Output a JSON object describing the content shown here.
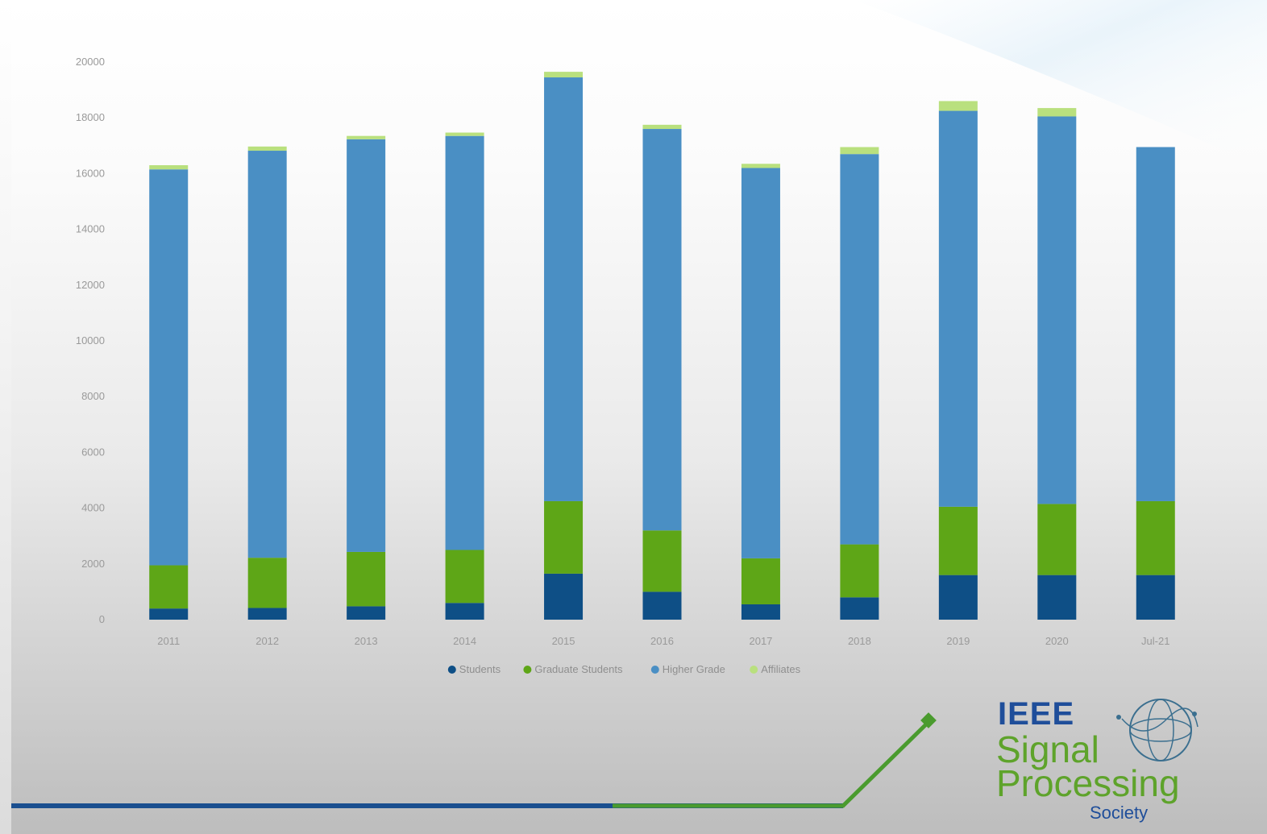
{
  "chart_data": {
    "type": "bar",
    "stacked": true,
    "categories": [
      "2011",
      "2012",
      "2013",
      "2014",
      "2015",
      "2016",
      "2017",
      "2018",
      "2019",
      "2020",
      "Jul-21"
    ],
    "series": [
      {
        "name": "Students",
        "color": "#0e4f86",
        "values": [
          400,
          420,
          480,
          600,
          1650,
          1000,
          550,
          800,
          1600,
          1600,
          1600
        ]
      },
      {
        "name": "Graduate Students",
        "color": "#5ea617",
        "values": [
          1550,
          1800,
          1950,
          1900,
          2600,
          2200,
          1650,
          1900,
          2450,
          2550,
          2650
        ]
      },
      {
        "name": "Higher Grade",
        "color": "#4a8fc4",
        "values": [
          14200,
          14600,
          14800,
          14850,
          15200,
          14400,
          14000,
          14000,
          14200,
          13900,
          12700
        ]
      },
      {
        "name": "Affiliates",
        "color": "#b9e07e",
        "values": [
          150,
          150,
          120,
          120,
          200,
          150,
          150,
          250,
          350,
          300,
          0
        ]
      }
    ],
    "ylim": [
      0,
      20000
    ],
    "yticks": [
      "0",
      "2000",
      "4000",
      "6000",
      "8000",
      "10000",
      "12000",
      "14000",
      "16000",
      "18000",
      "20000"
    ],
    "legend_position": "bottom",
    "grid": false
  },
  "logo": {
    "line1": "IEEE",
    "line2": "Signal",
    "line3": "Processing",
    "line4": "Society"
  },
  "decor": {
    "blue_line": "#1a4f8f",
    "green_line": "#4a9b2e"
  }
}
